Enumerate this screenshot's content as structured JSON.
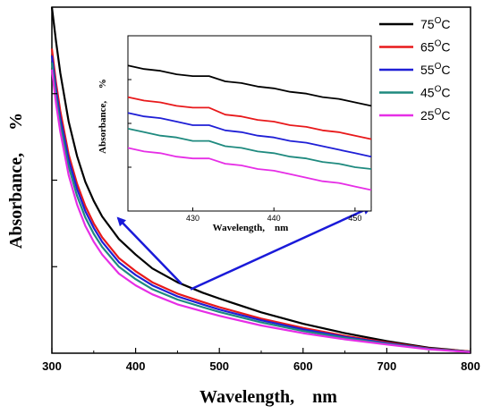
{
  "chart_data": [
    {
      "type": "line",
      "xlabel": "Wavelength,    nm",
      "ylabel": "Absorbance,     %",
      "xlim": [
        300,
        800
      ],
      "xticks": [
        "300",
        "400",
        "500",
        "600",
        "700",
        "800"
      ],
      "ylim": [
        0,
        1
      ],
      "y_tick_labels_shown": false,
      "grid": false,
      "legend_position": "top-right",
      "legend_unit_label": "O",
      "x": [
        300,
        305,
        310,
        320,
        330,
        340,
        350,
        360,
        380,
        400,
        420,
        450,
        480,
        500,
        550,
        600,
        650,
        700,
        750,
        800
      ],
      "series": [
        {
          "name": "75",
          "color": "#000000",
          "values": [
            1.0,
            0.9,
            0.81,
            0.67,
            0.57,
            0.495,
            0.44,
            0.395,
            0.33,
            0.285,
            0.245,
            0.205,
            0.175,
            0.158,
            0.118,
            0.085,
            0.058,
            0.035,
            0.016,
            0.005
          ]
        },
        {
          "name": "65",
          "color": "#e8191b",
          "values": [
            0.88,
            0.78,
            0.7,
            0.575,
            0.49,
            0.425,
            0.375,
            0.335,
            0.275,
            0.237,
            0.205,
            0.172,
            0.148,
            0.133,
            0.1,
            0.073,
            0.05,
            0.031,
            0.014,
            0.005
          ]
        },
        {
          "name": "55",
          "color": "#1f1fd6",
          "values": [
            0.86,
            0.76,
            0.68,
            0.56,
            0.475,
            0.41,
            0.362,
            0.322,
            0.263,
            0.226,
            0.196,
            0.164,
            0.141,
            0.126,
            0.095,
            0.069,
            0.047,
            0.029,
            0.013,
            0.004
          ]
        },
        {
          "name": "45",
          "color": "#1f8a7f",
          "values": [
            0.84,
            0.74,
            0.66,
            0.54,
            0.455,
            0.392,
            0.345,
            0.307,
            0.25,
            0.214,
            0.185,
            0.155,
            0.133,
            0.119,
            0.089,
            0.064,
            0.044,
            0.027,
            0.012,
            0.004
          ]
        },
        {
          "name": "25",
          "color": "#e62ee6",
          "values": [
            0.82,
            0.72,
            0.64,
            0.515,
            0.43,
            0.368,
            0.322,
            0.285,
            0.23,
            0.196,
            0.17,
            0.141,
            0.121,
            0.108,
            0.08,
            0.058,
            0.04,
            0.025,
            0.011,
            0.003
          ]
        }
      ]
    },
    {
      "type": "line",
      "xlabel": "Wavelength,    nm",
      "ylabel": "Absorbance,     %",
      "xlim": [
        422,
        452
      ],
      "xticks": [
        "430",
        "440",
        "450"
      ],
      "ylim": [
        0,
        1
      ],
      "y_tick_labels_shown": false,
      "grid": false,
      "x": [
        422,
        424,
        426,
        428,
        430,
        432,
        434,
        436,
        438,
        440,
        442,
        444,
        446,
        448,
        450,
        452
      ],
      "series": [
        {
          "name": "75",
          "color": "#000000",
          "values": [
            0.83,
            0.81,
            0.8,
            0.78,
            0.77,
            0.77,
            0.74,
            0.73,
            0.71,
            0.7,
            0.68,
            0.67,
            0.65,
            0.64,
            0.62,
            0.6
          ]
        },
        {
          "name": "65",
          "color": "#e8191b",
          "values": [
            0.65,
            0.63,
            0.62,
            0.6,
            0.59,
            0.59,
            0.55,
            0.54,
            0.52,
            0.51,
            0.49,
            0.48,
            0.46,
            0.45,
            0.43,
            0.41
          ]
        },
        {
          "name": "55",
          "color": "#1f1fd6",
          "values": [
            0.56,
            0.54,
            0.53,
            0.51,
            0.49,
            0.49,
            0.46,
            0.45,
            0.43,
            0.42,
            0.4,
            0.39,
            0.37,
            0.35,
            0.33,
            0.31
          ]
        },
        {
          "name": "45",
          "color": "#1f8a7f",
          "values": [
            0.47,
            0.45,
            0.43,
            0.42,
            0.4,
            0.4,
            0.37,
            0.36,
            0.34,
            0.33,
            0.31,
            0.3,
            0.28,
            0.27,
            0.25,
            0.24
          ]
        },
        {
          "name": "25",
          "color": "#e62ee6",
          "values": [
            0.36,
            0.34,
            0.33,
            0.31,
            0.3,
            0.3,
            0.27,
            0.26,
            0.24,
            0.23,
            0.21,
            0.19,
            0.17,
            0.16,
            0.14,
            0.12
          ]
        }
      ]
    }
  ],
  "annotation": {
    "arrow_color": "#1a1ad9",
    "arrow_origin_x": 455
  }
}
